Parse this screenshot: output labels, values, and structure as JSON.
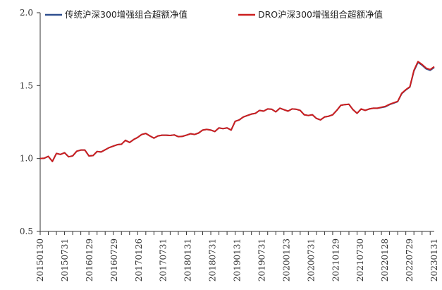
{
  "chart_data": {
    "type": "line",
    "title": "",
    "xlabel": "",
    "ylabel": "",
    "ylim": [
      0.5,
      2.0
    ],
    "yticks": [
      "0.5",
      "1.0",
      "1.5",
      "2.0"
    ],
    "xtick_labels": [
      "20150130",
      "20150731",
      "20160129",
      "20160729",
      "20170126",
      "20170731",
      "20180131",
      "20180731",
      "20190131",
      "20190731",
      "20200123",
      "20200731",
      "20210129",
      "20210730",
      "20220128",
      "20220729",
      "20230131"
    ],
    "grid": false,
    "legend_position": "top",
    "series": [
      {
        "name": "传统沪深300增强组合超额净值",
        "color": "#2f4f8f",
        "values": [
          1.0,
          1.002,
          1.015,
          0.98,
          1.035,
          1.028,
          1.04,
          1.012,
          1.018,
          1.05,
          1.058,
          1.058,
          1.018,
          1.02,
          1.048,
          1.045,
          1.06,
          1.075,
          1.085,
          1.095,
          1.098,
          1.125,
          1.11,
          1.13,
          1.145,
          1.165,
          1.172,
          1.155,
          1.14,
          1.155,
          1.16,
          1.16,
          1.158,
          1.162,
          1.15,
          1.152,
          1.16,
          1.17,
          1.165,
          1.175,
          1.195,
          1.2,
          1.195,
          1.185,
          1.21,
          1.205,
          1.21,
          1.195,
          1.255,
          1.265,
          1.285,
          1.295,
          1.305,
          1.31,
          1.33,
          1.325,
          1.34,
          1.338,
          1.32,
          1.345,
          1.335,
          1.325,
          1.34,
          1.338,
          1.33,
          1.3,
          1.295,
          1.3,
          1.275,
          1.265,
          1.285,
          1.29,
          1.3,
          1.33,
          1.365,
          1.37,
          1.372,
          1.335,
          1.31,
          1.34,
          1.33,
          1.34,
          1.345,
          1.345,
          1.35,
          1.355,
          1.37,
          1.38,
          1.39,
          1.445,
          1.47,
          1.49,
          1.6,
          1.66,
          1.64,
          1.615,
          1.605,
          1.625
        ]
      },
      {
        "name": "DRO沪深300增强组合超额净值",
        "color": "#cc1f1f",
        "values": [
          1.0,
          1.002,
          1.015,
          0.98,
          1.035,
          1.028,
          1.04,
          1.012,
          1.018,
          1.05,
          1.058,
          1.058,
          1.018,
          1.02,
          1.048,
          1.045,
          1.06,
          1.075,
          1.085,
          1.095,
          1.098,
          1.125,
          1.11,
          1.13,
          1.145,
          1.165,
          1.172,
          1.155,
          1.14,
          1.155,
          1.16,
          1.16,
          1.158,
          1.162,
          1.15,
          1.152,
          1.16,
          1.17,
          1.165,
          1.175,
          1.195,
          1.2,
          1.195,
          1.185,
          1.21,
          1.205,
          1.21,
          1.195,
          1.255,
          1.265,
          1.285,
          1.295,
          1.305,
          1.31,
          1.33,
          1.325,
          1.34,
          1.338,
          1.32,
          1.345,
          1.335,
          1.325,
          1.34,
          1.338,
          1.33,
          1.3,
          1.295,
          1.3,
          1.275,
          1.265,
          1.285,
          1.29,
          1.3,
          1.33,
          1.365,
          1.37,
          1.372,
          1.335,
          1.31,
          1.34,
          1.33,
          1.34,
          1.345,
          1.345,
          1.352,
          1.358,
          1.372,
          1.382,
          1.392,
          1.448,
          1.472,
          1.492,
          1.605,
          1.665,
          1.645,
          1.62,
          1.61,
          1.63
        ]
      }
    ]
  }
}
